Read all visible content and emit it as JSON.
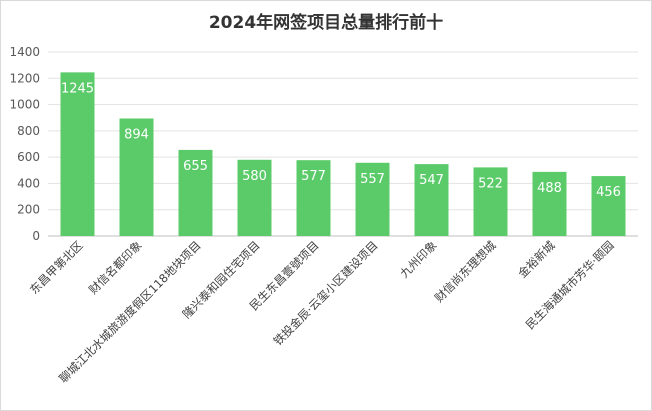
{
  "chart_data": {
    "type": "bar",
    "title": "2024年网签项目总量排行前十",
    "categories": [
      "东昌甲第北区",
      "财信名都印象",
      "聊城江北水城旅游度假区118地块项目",
      "隆兴泰和园住宅项目",
      "民生东昌壹號项目",
      "铁投金辰·云玺小区建设项目",
      "九州印象",
      "财信尚东理想城",
      "金裕新城",
      "民生海通城市芳华·颐园"
    ],
    "values": [
      1245,
      894,
      655,
      580,
      577,
      557,
      547,
      522,
      488,
      456
    ],
    "ylim": [
      0,
      1400
    ],
    "yticks": [
      0,
      200,
      400,
      600,
      800,
      1000,
      1200,
      1400
    ],
    "grid": true,
    "data_labels": true,
    "colors": {
      "bar": "#5bcb6a"
    }
  }
}
